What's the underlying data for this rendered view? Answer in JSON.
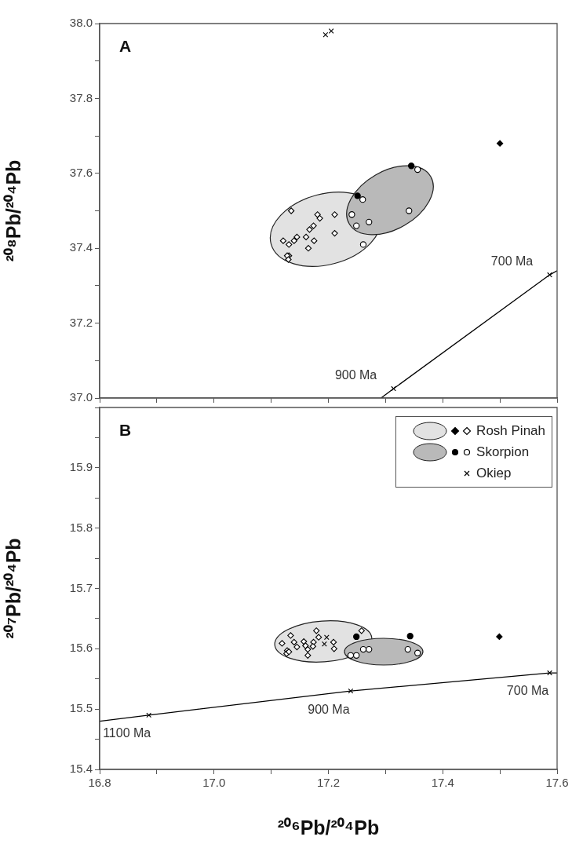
{
  "chart_data": [
    {
      "type": "scatter",
      "ylabel": "²⁰⁸Pb/²⁰⁴Pb",
      "xlim": [
        16.8,
        17.6
      ],
      "ylim": [
        37.0,
        38.0
      ],
      "xticks": [
        {
          "value": 16.8,
          "label": null
        },
        {
          "value": 16.9,
          "label": null
        },
        {
          "value": 17.0,
          "label": null
        },
        {
          "value": 17.1,
          "label": null
        },
        {
          "value": 17.2,
          "label": null
        },
        {
          "value": 17.3,
          "label": null
        },
        {
          "value": 17.4,
          "label": null
        },
        {
          "value": 17.5,
          "label": null
        },
        {
          "value": 17.6,
          "label": null
        }
      ],
      "yticks": [
        {
          "value": 37.0,
          "label": "37.0"
        },
        {
          "value": 37.1,
          "label": null
        },
        37.2,
        {
          "value": 37.3,
          "label": null
        },
        37.4,
        {
          "value": 37.5,
          "label": null
        },
        37.6,
        {
          "value": 37.7,
          "label": null
        },
        37.8,
        {
          "value": 37.9,
          "label": null
        },
        {
          "value": 38.0,
          "label": "38.0"
        }
      ],
      "tick_labels": "y",
      "grid": false,
      "legend": false,
      "annotations": [
        "A",
        {
          "text": "700 Ma",
          "x": 17.587,
          "y": 37.329
        },
        {
          "text": "900 Ma",
          "x": 17.314,
          "y": 37.025
        }
      ],
      "series": [
        {
          "color": "#ffffff",
          "marker": "diamond",
          "x": [
            17.135,
            17.181,
            17.185,
            17.211,
            17.167,
            17.174,
            17.161,
            17.175,
            17.211,
            17.165,
            17.121,
            17.131,
            17.14,
            17.145,
            17.131,
            17.128,
            17.13
          ],
          "values": [
            37.5,
            37.49,
            37.48,
            37.49,
            37.45,
            37.46,
            37.43,
            37.42,
            37.44,
            37.4,
            37.42,
            37.41,
            37.42,
            37.43,
            37.38,
            37.38,
            37.37
          ]
        },
        {
          "color": "#000000",
          "marker": "diamond",
          "x": [
            17.5
          ],
          "values": [
            37.68
          ]
        },
        {
          "color": "#ffffff",
          "marker": "circle",
          "x": [
            17.356,
            17.26,
            17.241,
            17.249,
            17.271,
            17.341,
            17.261
          ],
          "values": [
            37.61,
            37.53,
            37.49,
            37.46,
            37.47,
            37.5,
            37.41
          ]
        },
        {
          "color": "#000000",
          "marker": "circle",
          "x": [
            17.345,
            17.251
          ],
          "values": [
            37.62,
            37.54
          ]
        },
        {
          "color": "#000000",
          "marker": "cross",
          "x": [
            17.195,
            17.205
          ],
          "values": [
            37.97,
            37.98
          ]
        },
        {
          "type": "line",
          "color": "#000000",
          "marker": "none",
          "line_style": "solid",
          "x": [
            17.292,
            17.314,
            17.587,
            17.6
          ],
          "values": [
            37.0,
            37.025,
            37.329,
            37.34
          ]
        },
        {
          "color": "#000000",
          "marker": "cross",
          "x": [
            17.314,
            17.587
          ],
          "values": [
            37.025,
            37.329
          ]
        }
      ]
    },
    {
      "type": "scatter",
      "xlabel": "²⁰⁶Pb/²⁰⁴Pb",
      "ylabel": "²⁰⁷Pb/²⁰⁴Pb",
      "xlim": [
        16.8,
        17.6
      ],
      "ylim": [
        15.4,
        16.0
      ],
      "xticks": [
        16.8,
        {
          "value": 16.9,
          "label": null
        },
        {
          "value": 17.0,
          "label": "17.0"
        },
        {
          "value": 17.1,
          "label": null
        },
        17.2,
        {
          "value": 17.3,
          "label": null
        },
        17.4,
        {
          "value": 17.5,
          "label": null
        },
        17.6
      ],
      "yticks": [
        15.4,
        {
          "value": 15.45,
          "label": null
        },
        15.5,
        {
          "value": 15.55,
          "label": null
        },
        15.6,
        {
          "value": 15.65,
          "label": null
        },
        15.7,
        {
          "value": 15.75,
          "label": null
        },
        15.8,
        {
          "value": 15.85,
          "label": null
        },
        15.9,
        {
          "value": 15.95,
          "label": null
        },
        {
          "value": 16.0,
          "label": null
        }
      ],
      "grid": false,
      "legend": "top right",
      "annotations": [
        "B",
        {
          "text": "700 Ma",
          "x": 17.587,
          "y": 15.56
        },
        {
          "text": "900 Ma",
          "x": 17.239,
          "y": 15.53
        },
        {
          "text": "1100 Ma",
          "x": 16.886,
          "y": 15.49
        }
      ],
      "series": [
        {
          "name": "Rosh Pinah",
          "color": "#ffffff",
          "marker": "diamond",
          "x": [
            17.119,
            17.134,
            17.14,
            17.145,
            17.157,
            17.16,
            17.164,
            17.164,
            17.174,
            17.173,
            17.179,
            17.183,
            17.209,
            17.21,
            17.258,
            17.128,
            17.127,
            17.131
          ],
          "values": [
            15.609,
            15.622,
            15.611,
            15.603,
            15.612,
            15.605,
            15.599,
            15.589,
            15.611,
            15.604,
            15.63,
            15.619,
            15.611,
            15.6,
            15.63,
            15.597,
            15.592,
            15.595
          ]
        },
        {
          "color": "#000000",
          "marker": "diamond",
          "x": [
            17.499
          ],
          "values": [
            15.62
          ]
        },
        {
          "name": "Skorpion",
          "color": "#ffffff",
          "marker": "circle",
          "x": [
            17.239,
            17.249,
            17.261,
            17.271,
            17.339,
            17.356
          ],
          "values": [
            15.589,
            15.589,
            15.599,
            15.599,
            15.599,
            15.593
          ]
        },
        {
          "color": "#000000",
          "marker": "circle",
          "x": [
            17.249,
            17.343
          ],
          "values": [
            15.62,
            15.621
          ]
        },
        {
          "name": "Okiep",
          "color": "#000000",
          "marker": "cross",
          "x": [
            17.197,
            17.193
          ],
          "values": [
            15.619,
            15.608
          ]
        },
        {
          "type": "line",
          "color": "#000000",
          "marker": "none",
          "line_style": "solid",
          "x": [
            16.8,
            16.886,
            17.239,
            17.587,
            17.6
          ],
          "values": [
            15.48,
            15.49,
            15.53,
            15.56,
            15.56
          ]
        },
        {
          "color": "#000000",
          "marker": "cross",
          "x": [
            16.886,
            17.239,
            17.587
          ],
          "values": [
            15.49,
            15.53,
            15.56
          ]
        }
      ]
    }
  ]
}
